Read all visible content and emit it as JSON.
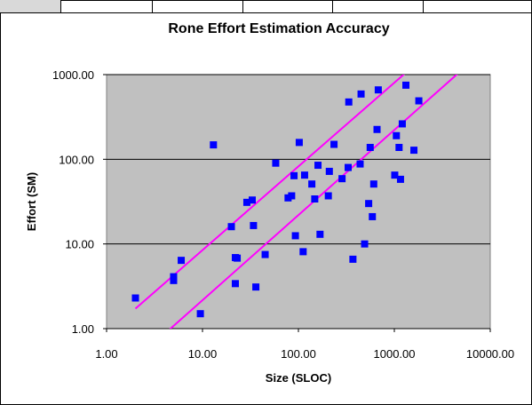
{
  "chart_data": {
    "type": "scatter",
    "title": "Rone Effort Estimation Accuracy",
    "xlabel": "Size (SLOC)",
    "ylabel": "Effort (SM)",
    "x_scale": "log",
    "y_scale": "log",
    "xlim": [
      1,
      10000
    ],
    "ylim": [
      1,
      1000
    ],
    "x_ticks": [
      "1.00",
      "10.00",
      "100.00",
      "1000.00",
      "10000.00"
    ],
    "y_ticks": [
      "1.00",
      "10.00",
      "100.00",
      "1000.00"
    ],
    "grid": "horizontal",
    "legend": "none",
    "colors": {
      "plot_background": "#c0c0c0",
      "points": "#0000ff",
      "bound_lines": "#ff00ff",
      "gridlines": "#000000"
    },
    "points": [
      {
        "x": 2.0,
        "y": 2.3
      },
      {
        "x": 5.0,
        "y": 4.1
      },
      {
        "x": 5.0,
        "y": 3.7
      },
      {
        "x": 6.0,
        "y": 6.4
      },
      {
        "x": 9.5,
        "y": 1.5
      },
      {
        "x": 13,
        "y": 148
      },
      {
        "x": 20,
        "y": 16
      },
      {
        "x": 22,
        "y": 6.9
      },
      {
        "x": 22,
        "y": 3.4
      },
      {
        "x": 23,
        "y": 6.8
      },
      {
        "x": 29,
        "y": 31
      },
      {
        "x": 33,
        "y": 33
      },
      {
        "x": 34,
        "y": 16.5
      },
      {
        "x": 36,
        "y": 3.1
      },
      {
        "x": 45,
        "y": 7.5
      },
      {
        "x": 58,
        "y": 90
      },
      {
        "x": 78,
        "y": 35
      },
      {
        "x": 85,
        "y": 37
      },
      {
        "x": 90,
        "y": 64
      },
      {
        "x": 93,
        "y": 12.5
      },
      {
        "x": 102,
        "y": 158
      },
      {
        "x": 112,
        "y": 8.1
      },
      {
        "x": 116,
        "y": 65
      },
      {
        "x": 138,
        "y": 51
      },
      {
        "x": 148,
        "y": 34
      },
      {
        "x": 160,
        "y": 85
      },
      {
        "x": 168,
        "y": 13
      },
      {
        "x": 205,
        "y": 37
      },
      {
        "x": 210,
        "y": 72
      },
      {
        "x": 235,
        "y": 150
      },
      {
        "x": 285,
        "y": 59
      },
      {
        "x": 330,
        "y": 80
      },
      {
        "x": 335,
        "y": 475
      },
      {
        "x": 370,
        "y": 6.6
      },
      {
        "x": 440,
        "y": 88
      },
      {
        "x": 450,
        "y": 590
      },
      {
        "x": 490,
        "y": 10
      },
      {
        "x": 540,
        "y": 30
      },
      {
        "x": 560,
        "y": 138
      },
      {
        "x": 590,
        "y": 21
      },
      {
        "x": 610,
        "y": 51
      },
      {
        "x": 660,
        "y": 225
      },
      {
        "x": 680,
        "y": 660
      },
      {
        "x": 1010,
        "y": 65
      },
      {
        "x": 1050,
        "y": 190
      },
      {
        "x": 1120,
        "y": 138
      },
      {
        "x": 1160,
        "y": 58
      },
      {
        "x": 1210,
        "y": 262
      },
      {
        "x": 1320,
        "y": 750
      },
      {
        "x": 1600,
        "y": 128
      },
      {
        "x": 1800,
        "y": 490
      }
    ],
    "lines": [
      {
        "x": [
          2.0,
          1300
        ],
        "y": [
          1.72,
          1040
        ]
      },
      {
        "x": [
          4.5,
          4600
        ],
        "y": [
          0.97,
          1030
        ]
      }
    ]
  }
}
